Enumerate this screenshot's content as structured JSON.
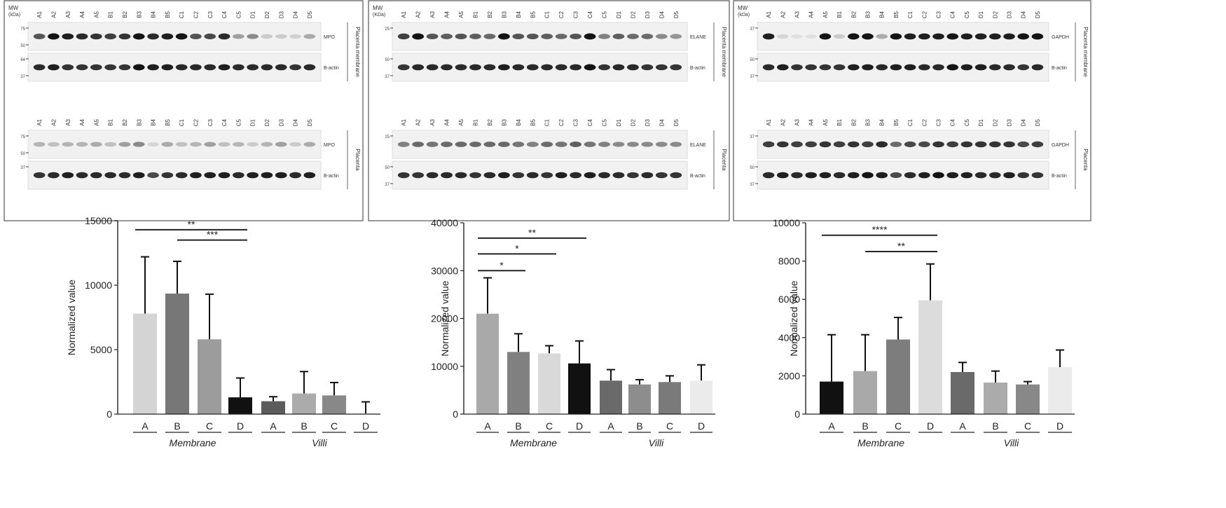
{
  "blots": [
    {
      "upper_block": {
        "mw_header": "MW\n(kDa)",
        "lanes": [
          "A1",
          "A2",
          "A3",
          "A4",
          "A5",
          "B1",
          "B2",
          "B3",
          "B4",
          "B5",
          "C1",
          "C2",
          "C3",
          "C4",
          "C5",
          "D1",
          "D2",
          "D3",
          "D4",
          "D5"
        ],
        "markers_1": [
          "75",
          "50"
        ],
        "markers_2": [
          "64",
          "37"
        ],
        "rows": [
          {
            "label": "MPO",
            "intensity": [
              0.7,
              1,
              0.95,
              0.9,
              0.85,
              0.8,
              0.85,
              1,
              0.9,
              0.95,
              1,
              0.7,
              0.75,
              0.9,
              0.35,
              0.45,
              0.15,
              0.15,
              0.12,
              0.3
            ]
          },
          {
            "label": "B-actin",
            "intensity": [
              0.9,
              0.95,
              0.85,
              0.85,
              0.85,
              0.85,
              0.85,
              1,
              0.95,
              0.95,
              0.9,
              0.9,
              0.9,
              0.95,
              0.9,
              0.9,
              0.9,
              0.9,
              0.85,
              0.9
            ]
          }
        ],
        "side_label": "Placenta membrane"
      },
      "lower_block": {
        "lanes": [
          "A1",
          "A2",
          "A3",
          "A4",
          "A5",
          "B1",
          "B2",
          "B3",
          "B4",
          "B5",
          "C1",
          "C2",
          "C3",
          "C4",
          "C5",
          "D1",
          "D2",
          "D3",
          "D4",
          "D5"
        ],
        "markers_1": [
          "75",
          "50"
        ],
        "markers_2": [
          "37"
        ],
        "rows": [
          {
            "label": "MPO",
            "intensity": [
              0.25,
              0.2,
              0.25,
              0.25,
              0.3,
              0.2,
              0.35,
              0.45,
              0.1,
              0.3,
              0.2,
              0.25,
              0.35,
              0.2,
              0.25,
              0.15,
              0.25,
              0.35,
              0.15,
              0.3
            ]
          },
          {
            "label": "B-actin",
            "intensity": [
              0.85,
              0.9,
              0.95,
              0.9,
              0.9,
              0.9,
              0.9,
              0.95,
              0.75,
              0.85,
              0.9,
              0.95,
              0.95,
              0.95,
              0.9,
              0.95,
              0.95,
              0.95,
              0.9,
              0.95
            ]
          }
        ],
        "side_label": "Placenta"
      }
    },
    {
      "upper_block": {
        "mw_header": "MW\n(KDa)",
        "lanes": [
          "A1",
          "A2",
          "A3",
          "A4",
          "A5",
          "B1",
          "B2",
          "B3",
          "B4",
          "B5",
          "C1",
          "C2",
          "C3",
          "C4",
          "C5",
          "D1",
          "D2",
          "D3",
          "D4",
          "D5"
        ],
        "markers_1": [
          "25"
        ],
        "markers_2": [
          "50",
          "37"
        ],
        "rows": [
          {
            "label": "ELANE",
            "intensity": [
              0.8,
              1,
              0.7,
              0.65,
              0.7,
              0.65,
              0.6,
              1,
              0.7,
              0.7,
              0.65,
              0.6,
              0.7,
              1,
              0.5,
              0.65,
              0.6,
              0.6,
              0.45,
              0.4
            ]
          },
          {
            "label": "B-actin",
            "intensity": [
              0.85,
              0.9,
              0.9,
              0.9,
              0.9,
              0.9,
              0.9,
              0.95,
              0.9,
              0.9,
              0.9,
              0.9,
              0.9,
              1,
              0.85,
              0.9,
              0.9,
              0.85,
              0.85,
              0.85
            ]
          }
        ],
        "side_label": "Placenta membrane"
      },
      "lower_block": {
        "lanes": [
          "A1",
          "A2",
          "A3",
          "A4",
          "A5",
          "B1",
          "B2",
          "B3",
          "B4",
          "B5",
          "C1",
          "C2",
          "C3",
          "C4",
          "C5",
          "D1",
          "D2",
          "D3",
          "D4",
          "D5"
        ],
        "markers_1": [
          "25"
        ],
        "markers_2": [
          "50",
          "37"
        ],
        "rows": [
          {
            "label": "ELANE",
            "intensity": [
              0.5,
              0.6,
              0.55,
              0.6,
              0.6,
              0.6,
              0.6,
              0.6,
              0.55,
              0.5,
              0.6,
              0.55,
              0.65,
              0.55,
              0.5,
              0.45,
              0.45,
              0.45,
              0.45,
              0.45
            ]
          },
          {
            "label": "B-actin",
            "intensity": [
              0.85,
              0.85,
              0.9,
              0.9,
              0.9,
              0.85,
              0.9,
              0.95,
              0.85,
              0.9,
              0.85,
              0.95,
              0.9,
              0.95,
              0.9,
              0.9,
              0.85,
              0.9,
              0.85,
              0.85
            ]
          }
        ],
        "side_label": "Placenta"
      }
    },
    {
      "upper_block": {
        "mw_header": "MW\n(kDa)",
        "lanes": [
          "A1",
          "A2",
          "A3",
          "A4",
          "A5",
          "B1",
          "B2",
          "B3",
          "B4",
          "B5",
          "C1",
          "C2",
          "C3",
          "C4",
          "C5",
          "D1",
          "D2",
          "D3",
          "D4",
          "D5"
        ],
        "markers_1": [
          "37"
        ],
        "markers_2": [
          "50",
          "37"
        ],
        "rows": [
          {
            "label": "GAPDH",
            "intensity": [
              0.95,
              0.1,
              0.05,
              0.05,
              1,
              0.15,
              1,
              1,
              0.3,
              1,
              0.95,
              0.95,
              0.95,
              1,
              0.95,
              0.95,
              0.95,
              0.95,
              1,
              1
            ]
          },
          {
            "label": "B-actin",
            "intensity": [
              0.9,
              0.95,
              0.85,
              0.85,
              0.85,
              0.85,
              0.95,
              0.95,
              0.9,
              0.95,
              0.95,
              0.9,
              0.9,
              1,
              0.95,
              0.95,
              0.9,
              0.9,
              0.85,
              0.9
            ]
          }
        ],
        "side_label": "Placenta membrane"
      },
      "lower_block": {
        "lanes": [
          "A1",
          "A2",
          "A3",
          "A4",
          "A5",
          "B1",
          "B2",
          "B3",
          "B4",
          "B5",
          "C1",
          "C2",
          "C3",
          "C4",
          "C5",
          "D1",
          "D2",
          "D3",
          "D4",
          "D5"
        ],
        "markers_1": [
          "37"
        ],
        "markers_2": [
          "50",
          "37"
        ],
        "rows": [
          {
            "label": "GAPDH",
            "intensity": [
              0.8,
              0.85,
              0.8,
              0.8,
              0.85,
              0.8,
              0.85,
              0.8,
              0.9,
              0.6,
              0.75,
              0.75,
              0.85,
              0.8,
              0.85,
              0.85,
              0.85,
              0.85,
              0.75,
              0.8
            ]
          },
          {
            "label": "B-actin",
            "intensity": [
              0.9,
              0.95,
              0.9,
              0.95,
              0.95,
              0.9,
              0.95,
              1,
              0.95,
              0.75,
              0.9,
              0.95,
              1,
              0.95,
              0.95,
              0.9,
              0.9,
              0.95,
              0.85,
              0.85
            ]
          }
        ],
        "side_label": "Placenta"
      }
    }
  ],
  "chart_data": [
    {
      "type": "bar",
      "categories": [
        "A",
        "B",
        "C",
        "D",
        "A",
        "B",
        "C",
        "D"
      ],
      "groups": [
        "Membrane",
        "Villi"
      ],
      "values": [
        7800,
        9350,
        5800,
        1300,
        1000,
        1600,
        1450,
        50
      ],
      "errors": [
        4400,
        2500,
        3500,
        1500,
        350,
        1700,
        1000,
        900
      ],
      "bar_colors": [
        "#d4d4d4",
        "#777777",
        "#9c9c9c",
        "#111111",
        "#5c5c5c",
        "#ababab",
        "#888888",
        "#ebebeb"
      ],
      "ylabel": "Normalized value",
      "ylim": [
        0,
        15000
      ],
      "yticks": [
        "0",
        "5000",
        "10000",
        "15000"
      ],
      "significance": [
        {
          "from": 0,
          "to": 3,
          "label": "**",
          "y": 14300
        },
        {
          "from": 1,
          "to": 3,
          "label": "***",
          "y": 13500
        }
      ]
    },
    {
      "type": "bar",
      "categories": [
        "A",
        "B",
        "C",
        "D",
        "A",
        "B",
        "C",
        "D"
      ],
      "groups": [
        "Membrane",
        "Villi"
      ],
      "values": [
        21000,
        13000,
        12700,
        10600,
        7000,
        6200,
        6700,
        7000
      ],
      "errors": [
        7500,
        3800,
        1600,
        4700,
        2300,
        1000,
        1300,
        3300
      ],
      "bar_colors": [
        "#a9a9a9",
        "#808080",
        "#d9d9d9",
        "#111111",
        "#6a6a6a",
        "#8d8d8d",
        "#7a7a7a",
        "#ebebeb"
      ],
      "ylabel": "Normalized value",
      "ylim": [
        0,
        40000
      ],
      "yticks": [
        "0",
        "10000",
        "20000",
        "30000",
        "40000"
      ],
      "significance": [
        {
          "from": 0,
          "to": 1,
          "label": "*",
          "y": 30000
        },
        {
          "from": 0,
          "to": 2,
          "label": "*",
          "y": 33500
        },
        {
          "from": 0,
          "to": 3,
          "label": "**",
          "y": 36800
        }
      ]
    },
    {
      "type": "bar",
      "categories": [
        "A",
        "B",
        "C",
        "D",
        "A",
        "B",
        "C",
        "D"
      ],
      "groups": [
        "Membrane",
        "Villi"
      ],
      "values": [
        1700,
        2250,
        3900,
        5950,
        2200,
        1650,
        1550,
        2450
      ],
      "errors": [
        2450,
        1900,
        1150,
        1900,
        500,
        600,
        150,
        900
      ],
      "bar_colors": [
        "#111111",
        "#a9a9a9",
        "#7d7d7d",
        "#dcdcdc",
        "#6a6a6a",
        "#ababab",
        "#888888",
        "#ebebeb"
      ],
      "ylabel": "Normalized value",
      "ylim": [
        0,
        10000
      ],
      "yticks": [
        "0",
        "2000",
        "4000",
        "6000",
        "8000",
        "10000"
      ],
      "significance": [
        {
          "from": 0,
          "to": 3,
          "label": "****",
          "y": 9350
        },
        {
          "from": 1,
          "to": 3,
          "label": "**",
          "y": 8500
        }
      ]
    }
  ]
}
